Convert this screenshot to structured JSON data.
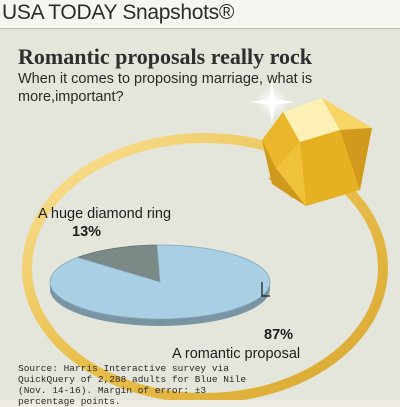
{
  "masthead": {
    "title": "USA TODAY Snapshots®"
  },
  "chart_data": {
    "type": "pie",
    "title": "Romantic proposals really rock",
    "subtitle": "When it comes to proposing marriage, what is more,important?",
    "categories": [
      "A huge diamond ring",
      "A romantic proposal"
    ],
    "values": [
      13,
      87
    ],
    "value_labels": [
      "13%",
      "87%"
    ],
    "colors": [
      "#7b8a87",
      "#a8cfe4"
    ],
    "source": "Source: Harris Interactive survey via QuickQuery of 2,288 adults for Blue Nile (Nov. 14-16). Margin of error: ±3 percentage points."
  }
}
